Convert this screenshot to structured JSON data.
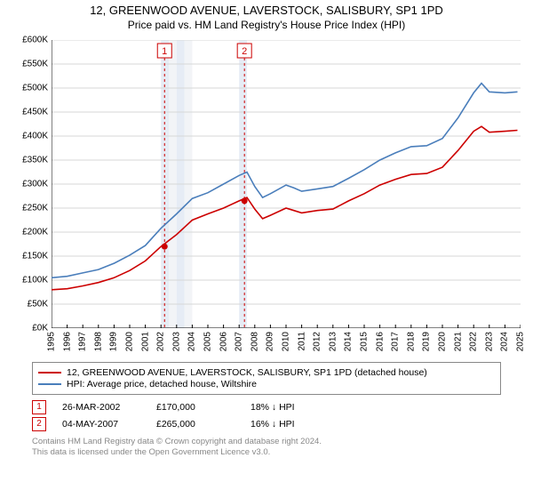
{
  "title_line1": "12, GREENWOOD AVENUE, LAVERSTOCK, SALISBURY, SP1 1PD",
  "title_line2": "Price paid vs. HM Land Registry's House Price Index (HPI)",
  "chart": {
    "type": "line",
    "background_color": "#ffffff",
    "grid_color": "#d7d7d7",
    "axis_color": "#000000",
    "ylim": [
      0,
      600
    ],
    "ytick_step": 50,
    "y_prefix": "£",
    "y_suffix": "K",
    "ylabel_fontsize": 10,
    "xlim_years": [
      1995,
      2025
    ],
    "xtick_years": [
      1995,
      1996,
      1997,
      1998,
      1999,
      2000,
      2001,
      2002,
      2003,
      2004,
      2005,
      2006,
      2007,
      2008,
      2009,
      2010,
      2011,
      2012,
      2013,
      2014,
      2015,
      2016,
      2017,
      2018,
      2019,
      2020,
      2021,
      2022,
      2023,
      2024,
      2025
    ],
    "xlabel_fontsize": 10,
    "line_width": 1.6,
    "shaded_bands": [
      {
        "x_start": 2002.0,
        "x_end": 2002.5,
        "color": "#e6ecf5"
      },
      {
        "x_start": 2002.5,
        "x_end": 2003.0,
        "color": "#f2f4f7"
      },
      {
        "x_start": 2003.0,
        "x_end": 2003.5,
        "color": "#e6ecf5"
      },
      {
        "x_start": 2003.5,
        "x_end": 2004.0,
        "color": "#f2f4f7"
      },
      {
        "x_start": 2007.0,
        "x_end": 2007.5,
        "color": "#e6ecf5"
      }
    ],
    "markers": [
      {
        "label": "1",
        "x_year": 2002.23,
        "y_value": 170,
        "date": "26-MAR-2002",
        "price": "£170,000",
        "delta": "18% ↓ HPI",
        "box_border": "#cc0000",
        "dash_color": "#cc0000"
      },
      {
        "label": "2",
        "x_year": 2007.34,
        "y_value": 265,
        "date": "04-MAY-2007",
        "price": "£265,000",
        "delta": "16% ↓ HPI",
        "box_border": "#cc0000",
        "dash_color": "#cc0000"
      }
    ],
    "marker_dot_color": "#cc0000",
    "series": [
      {
        "name": "12, GREENWOOD AVENUE, LAVERSTOCK, SALISBURY, SP1 1PD (detached house)",
        "color": "#cc0000",
        "data": [
          [
            1995,
            80
          ],
          [
            1996,
            82
          ],
          [
            1997,
            88
          ],
          [
            1998,
            95
          ],
          [
            1999,
            105
          ],
          [
            2000,
            120
          ],
          [
            2001,
            140
          ],
          [
            2002,
            170
          ],
          [
            2003,
            195
          ],
          [
            2004,
            225
          ],
          [
            2005,
            238
          ],
          [
            2006,
            250
          ],
          [
            2007,
            265
          ],
          [
            2007.5,
            272
          ],
          [
            2008,
            248
          ],
          [
            2008.5,
            228
          ],
          [
            2009,
            235
          ],
          [
            2010,
            250
          ],
          [
            2010.5,
            245
          ],
          [
            2011,
            240
          ],
          [
            2012,
            245
          ],
          [
            2013,
            248
          ],
          [
            2014,
            265
          ],
          [
            2015,
            280
          ],
          [
            2016,
            298
          ],
          [
            2017,
            310
          ],
          [
            2018,
            320
          ],
          [
            2019,
            322
          ],
          [
            2020,
            335
          ],
          [
            2021,
            370
          ],
          [
            2022,
            410
          ],
          [
            2022.5,
            420
          ],
          [
            2023,
            408
          ],
          [
            2024,
            410
          ],
          [
            2024.8,
            412
          ]
        ]
      },
      {
        "name": "HPI: Average price, detached house, Wiltshire",
        "color": "#4a7ebb",
        "data": [
          [
            1995,
            105
          ],
          [
            1996,
            108
          ],
          [
            1997,
            115
          ],
          [
            1998,
            122
          ],
          [
            1999,
            135
          ],
          [
            2000,
            152
          ],
          [
            2001,
            172
          ],
          [
            2002,
            208
          ],
          [
            2003,
            238
          ],
          [
            2004,
            270
          ],
          [
            2005,
            282
          ],
          [
            2006,
            300
          ],
          [
            2007,
            318
          ],
          [
            2007.5,
            325
          ],
          [
            2008,
            295
          ],
          [
            2008.5,
            272
          ],
          [
            2009,
            280
          ],
          [
            2010,
            298
          ],
          [
            2010.5,
            292
          ],
          [
            2011,
            285
          ],
          [
            2012,
            290
          ],
          [
            2013,
            295
          ],
          [
            2014,
            312
          ],
          [
            2015,
            330
          ],
          [
            2016,
            350
          ],
          [
            2017,
            365
          ],
          [
            2018,
            378
          ],
          [
            2019,
            380
          ],
          [
            2020,
            395
          ],
          [
            2021,
            438
          ],
          [
            2022,
            490
          ],
          [
            2022.5,
            510
          ],
          [
            2023,
            492
          ],
          [
            2024,
            490
          ],
          [
            2024.8,
            492
          ]
        ]
      }
    ]
  },
  "legend": {
    "border_color": "#888888",
    "fontsize": 10.5
  },
  "attribution_line1": "Contains HM Land Registry data © Crown copyright and database right 2024.",
  "attribution_line2": "This data is licensed under the Open Government Licence v3.0.",
  "attribution_color": "#888888"
}
